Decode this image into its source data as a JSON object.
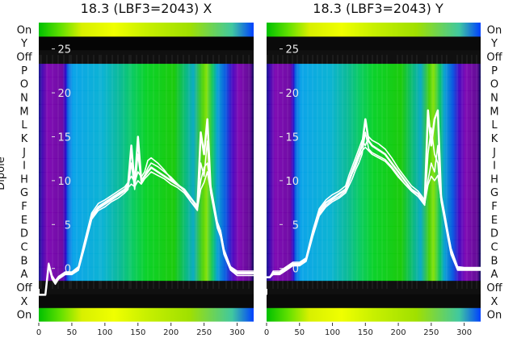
{
  "chart_data": [
    {
      "type": "line",
      "title": "18.3 (LBF3=2043) X",
      "ylabel": "Dipole",
      "xlim": [
        0,
        325
      ],
      "ylim": [
        -6,
        28
      ],
      "x_ticks": [
        0,
        50,
        100,
        150,
        200,
        250,
        300
      ],
      "y_ticks": [
        0,
        5,
        10,
        15,
        20,
        25
      ],
      "rows_bottom_to_top": [
        "On",
        "X",
        "Off",
        "A",
        "B",
        "C",
        "D",
        "E",
        "F",
        "G",
        "H",
        "I",
        "J",
        "K",
        "L",
        "M",
        "N",
        "O",
        "P",
        "Off",
        "Y",
        "On"
      ],
      "background": "dipole rows heatmap",
      "series_x": [
        0,
        5,
        10,
        15,
        20,
        25,
        30,
        40,
        50,
        60,
        70,
        80,
        90,
        100,
        110,
        120,
        130,
        135,
        140,
        145,
        150,
        155,
        160,
        165,
        170,
        180,
        190,
        200,
        210,
        220,
        230,
        240,
        245,
        250,
        255,
        260,
        265,
        270,
        275,
        280,
        290,
        300,
        310,
        325
      ],
      "series": [
        {
          "values": [
            -3,
            -3,
            -3,
            0.5,
            -1,
            -1.5,
            -1,
            -0.5,
            -0.5,
            0,
            3,
            6,
            7,
            7.5,
            8,
            8.5,
            9,
            9.5,
            14,
            9.5,
            15,
            10,
            10.5,
            11,
            11.5,
            11,
            10.5,
            10,
            9.5,
            9,
            8,
            7,
            15.5,
            13,
            17,
            9,
            7,
            5,
            4,
            2,
            0,
            -0.5,
            -0.5,
            -0.5
          ]
        },
        {
          "values": [
            -3,
            -3,
            -3,
            0.3,
            -1.2,
            -1.8,
            -1.2,
            -0.7,
            -0.7,
            -0.2,
            2.6,
            5.6,
            6.6,
            7,
            7.6,
            8,
            8.6,
            9,
            12,
            9,
            13,
            9.8,
            10.6,
            11.4,
            12,
            11.6,
            11,
            10.4,
            9.6,
            8.8,
            7.6,
            6.6,
            12,
            10.5,
            14.5,
            8.6,
            6.6,
            4.6,
            3.6,
            1.6,
            -0.2,
            -0.8,
            -0.8,
            -0.8
          ]
        },
        {
          "values": [
            -3,
            -3,
            -3,
            0.6,
            -0.8,
            -1.4,
            -0.9,
            -0.4,
            -0.4,
            0.2,
            3.3,
            6.3,
            7.4,
            7.8,
            8.3,
            8.8,
            9.3,
            9.8,
            10.5,
            9.8,
            11,
            10.4,
            11,
            12.3,
            12.6,
            12,
            11.2,
            10.2,
            9.6,
            8.9,
            7.9,
            7.2,
            10,
            11.5,
            12,
            9.5,
            7.4,
            5.3,
            4.3,
            2.2,
            0.2,
            -0.3,
            -0.3,
            -0.3
          ]
        },
        {
          "values": [
            -3,
            -3,
            -3,
            0.4,
            -1.1,
            -1.6,
            -1,
            -0.6,
            -0.6,
            0.1,
            2.8,
            5.8,
            6.8,
            7.3,
            7.8,
            8.3,
            8.8,
            9.2,
            9.6,
            9.3,
            10,
            9.6,
            10.2,
            10.6,
            11,
            10.6,
            10.2,
            9.6,
            9.2,
            8.6,
            7.6,
            6.8,
            9,
            9.8,
            11,
            8.8,
            6.8,
            4.8,
            3.8,
            1.8,
            -0.1,
            -0.6,
            -0.6,
            -0.6
          ]
        }
      ]
    },
    {
      "type": "line",
      "title": "18.3 (LBF3=2043) Y",
      "xlim": [
        0,
        325
      ],
      "ylim": [
        -6,
        28
      ],
      "x_ticks": [
        0,
        50,
        100,
        150,
        200,
        250,
        300
      ],
      "y_ticks": [
        0,
        5,
        10,
        15,
        20,
        25
      ],
      "rows_bottom_to_top": [
        "On",
        "X",
        "Off",
        "A",
        "B",
        "C",
        "D",
        "E",
        "F",
        "G",
        "H",
        "I",
        "J",
        "K",
        "L",
        "M",
        "N",
        "O",
        "P",
        "Off",
        "Y",
        "On"
      ],
      "background": "dipole rows heatmap",
      "series_x": [
        0,
        5,
        10,
        15,
        20,
        30,
        40,
        50,
        60,
        70,
        80,
        90,
        100,
        110,
        120,
        125,
        130,
        135,
        140,
        145,
        150,
        155,
        160,
        170,
        180,
        190,
        200,
        210,
        220,
        230,
        240,
        245,
        250,
        255,
        260,
        265,
        270,
        275,
        280,
        290,
        300,
        310,
        325
      ],
      "series": [
        {
          "values": [
            -1,
            -1,
            -0.5,
            -0.5,
            -0.5,
            0,
            0.5,
            0.5,
            1,
            4,
            6.5,
            7.5,
            8,
            8.5,
            9,
            10,
            11,
            12,
            13,
            14,
            17,
            14.5,
            14,
            13.5,
            13,
            12,
            11,
            10,
            9,
            8.5,
            7.5,
            18,
            14,
            17,
            18,
            8,
            6,
            4,
            2,
            0,
            0,
            0,
            0
          ]
        },
        {
          "values": [
            -1,
            -1,
            -0.7,
            -0.7,
            -0.7,
            -0.2,
            0.3,
            0.3,
            0.8,
            3.6,
            6,
            7,
            7.6,
            8,
            8.6,
            9.4,
            10.2,
            11.2,
            12,
            13,
            15.5,
            13.6,
            13.2,
            12.8,
            12.4,
            11.6,
            10.6,
            9.6,
            8.8,
            8.2,
            7.2,
            13,
            16,
            13,
            12,
            7.6,
            5.6,
            3.6,
            1.6,
            -0.2,
            -0.2,
            -0.2,
            -0.2
          ]
        },
        {
          "values": [
            -1,
            -1,
            -0.3,
            -0.3,
            -0.3,
            0.2,
            0.7,
            0.7,
            1.2,
            4.3,
            6.8,
            7.8,
            8.4,
            8.8,
            9.4,
            10.6,
            11.6,
            12.6,
            13.6,
            14.6,
            14,
            15,
            14.6,
            14.2,
            13.6,
            12.6,
            11.4,
            10.4,
            9.4,
            8.8,
            7.8,
            10,
            12,
            11,
            14,
            8.4,
            6.4,
            4.3,
            2.3,
            0.2,
            0.1,
            0.1,
            0.1
          ]
        },
        {
          "values": [
            -1,
            -1,
            -0.6,
            -0.6,
            -0.6,
            -0.1,
            0.4,
            0.4,
            0.9,
            3.9,
            6.2,
            7.2,
            7.8,
            8.2,
            8.8,
            9.8,
            10.8,
            11.6,
            12.6,
            13.4,
            13.8,
            13.4,
            13,
            12.6,
            12.2,
            11.4,
            10.4,
            9.6,
            8.8,
            8.2,
            7.4,
            9.5,
            10.5,
            10,
            10.6,
            7.8,
            5.8,
            3.8,
            1.8,
            -0.1,
            -0.1,
            -0.1,
            -0.1
          ]
        }
      ]
    }
  ]
}
